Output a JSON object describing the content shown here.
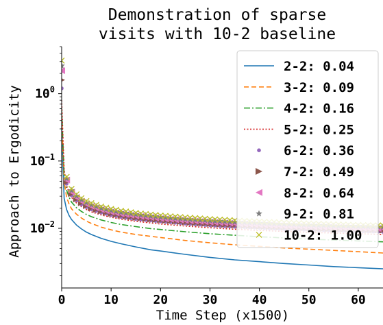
{
  "chart_data": {
    "type": "line",
    "title": "Demonstration of sparse\nvisits with 10-2 baseline",
    "title_lines": [
      "Demonstration of sparse",
      "visits with 10-2 baseline"
    ],
    "xlabel": "Time Step (x1500)",
    "ylabel": "Approach to Ergodicity",
    "yscale": "log",
    "xlim": [
      0,
      65
    ],
    "ylim": [
      0.0013,
      5
    ],
    "grid": false,
    "legend_position": "top-right",
    "x_ticks": [
      {
        "value": 0,
        "label": "0"
      },
      {
        "value": 10,
        "label": "10"
      },
      {
        "value": 20,
        "label": "20"
      },
      {
        "value": 30,
        "label": "30"
      },
      {
        "value": 40,
        "label": "40"
      },
      {
        "value": 50,
        "label": "50"
      },
      {
        "value": 60,
        "label": "60"
      }
    ],
    "y_ticks": [
      {
        "value": 1,
        "base": "10",
        "exp": "0"
      },
      {
        "value": 0.1,
        "base": "10",
        "exp": "−1"
      },
      {
        "value": 0.01,
        "base": "10",
        "exp": "−2"
      }
    ],
    "x": [
      0,
      0.5,
      1,
      1.5,
      2,
      3,
      4,
      5,
      6,
      8,
      10,
      12,
      15,
      18,
      20,
      25,
      30,
      35,
      40,
      45,
      50,
      55,
      60,
      65
    ],
    "series": [
      {
        "name": "2-2: 0.04",
        "color": "#1f77b4",
        "style": "solid",
        "marker": "none",
        "values": [
          0.3,
          0.028,
          0.019,
          0.0155,
          0.0135,
          0.0112,
          0.0098,
          0.0088,
          0.0081,
          0.0071,
          0.0064,
          0.0059,
          0.0053,
          0.0048,
          0.0046,
          0.0041,
          0.0037,
          0.0034,
          0.0032,
          0.003,
          0.00285,
          0.0027,
          0.0026,
          0.0025
        ]
      },
      {
        "name": "3-2: 0.09",
        "color": "#ff7f0e",
        "style": "dashed",
        "marker": "none",
        "values": [
          0.45,
          0.05,
          0.029,
          0.023,
          0.0195,
          0.0162,
          0.0142,
          0.0128,
          0.0118,
          0.0104,
          0.0095,
          0.0088,
          0.0081,
          0.0076,
          0.0073,
          0.0066,
          0.0061,
          0.0057,
          0.0054,
          0.0051,
          0.0049,
          0.0047,
          0.0045,
          0.0043
        ]
      },
      {
        "name": "4-2: 0.16",
        "color": "#2ca02c",
        "style": "dashdot",
        "marker": "none",
        "values": [
          0.6,
          0.065,
          0.037,
          0.029,
          0.0245,
          0.0202,
          0.0178,
          0.0161,
          0.0149,
          0.0133,
          0.0122,
          0.0114,
          0.0106,
          0.0099,
          0.0096,
          0.0089,
          0.0083,
          0.0079,
          0.0075,
          0.0072,
          0.0069,
          0.0067,
          0.0065,
          0.0063
        ]
      },
      {
        "name": "5-2: 0.25",
        "color": "#d62728",
        "style": "dotted",
        "marker": "none",
        "values": [
          0.8,
          0.075,
          0.043,
          0.034,
          0.0288,
          0.0238,
          0.021,
          0.019,
          0.0176,
          0.0158,
          0.0146,
          0.0137,
          0.0127,
          0.012,
          0.0116,
          0.0108,
          0.0102,
          0.0097,
          0.0093,
          0.009,
          0.0087,
          0.0085,
          0.0083,
          0.0081
        ]
      },
      {
        "name": "6-2: 0.36",
        "color": "#9467bd",
        "style": "none",
        "marker": "circle",
        "values": [
          1.2,
          0.08,
          0.046,
          0.037,
          0.031,
          0.026,
          0.0228,
          0.0207,
          0.0192,
          0.0172,
          0.0158,
          0.0148,
          0.0138,
          0.0131,
          0.0127,
          0.0118,
          0.0111,
          0.0106,
          0.0102,
          0.0098,
          0.0095,
          0.0093,
          0.0091,
          0.0089
        ]
      },
      {
        "name": "7-2: 0.49",
        "color": "#8c564b",
        "style": "none",
        "marker": "triangle-right",
        "values": [
          1.6,
          0.085,
          0.049,
          0.039,
          0.0328,
          0.0273,
          0.024,
          0.0218,
          0.0202,
          0.0181,
          0.0166,
          0.0156,
          0.0145,
          0.0137,
          0.0133,
          0.0124,
          0.0117,
          0.0112,
          0.0107,
          0.0104,
          0.0101,
          0.0098,
          0.0096,
          0.0094
        ]
      },
      {
        "name": "8-2: 0.64",
        "color": "#e377c2",
        "style": "none",
        "marker": "triangle-left",
        "values": [
          2.2,
          0.09,
          0.052,
          0.041,
          0.0345,
          0.0287,
          0.0252,
          0.0229,
          0.0212,
          0.019,
          0.0175,
          0.0164,
          0.0153,
          0.0145,
          0.014,
          0.0131,
          0.0124,
          0.0118,
          0.0113,
          0.0109,
          0.0106,
          0.0104,
          0.0101,
          0.0099
        ]
      },
      {
        "name": "9-2: 0.81",
        "color": "#7f7f7f",
        "style": "none",
        "marker": "star",
        "values": [
          2.6,
          0.095,
          0.055,
          0.0435,
          0.0365,
          0.0303,
          0.0266,
          0.0241,
          0.0224,
          0.02,
          0.0184,
          0.0173,
          0.0161,
          0.0152,
          0.0147,
          0.0137,
          0.013,
          0.0124,
          0.0119,
          0.0115,
          0.0112,
          0.0109,
          0.0107,
          0.0105
        ]
      },
      {
        "name": "10-2: 1.00",
        "color": "#bcbd22",
        "style": "none",
        "marker": "x",
        "values": [
          3.1,
          0.1,
          0.058,
          0.046,
          0.0385,
          0.032,
          0.028,
          0.0254,
          0.0236,
          0.0211,
          0.0194,
          0.0182,
          0.0169,
          0.016,
          0.0155,
          0.0145,
          0.0137,
          0.0131,
          0.0126,
          0.0122,
          0.0118,
          0.0115,
          0.0112,
          0.011
        ]
      }
    ]
  }
}
